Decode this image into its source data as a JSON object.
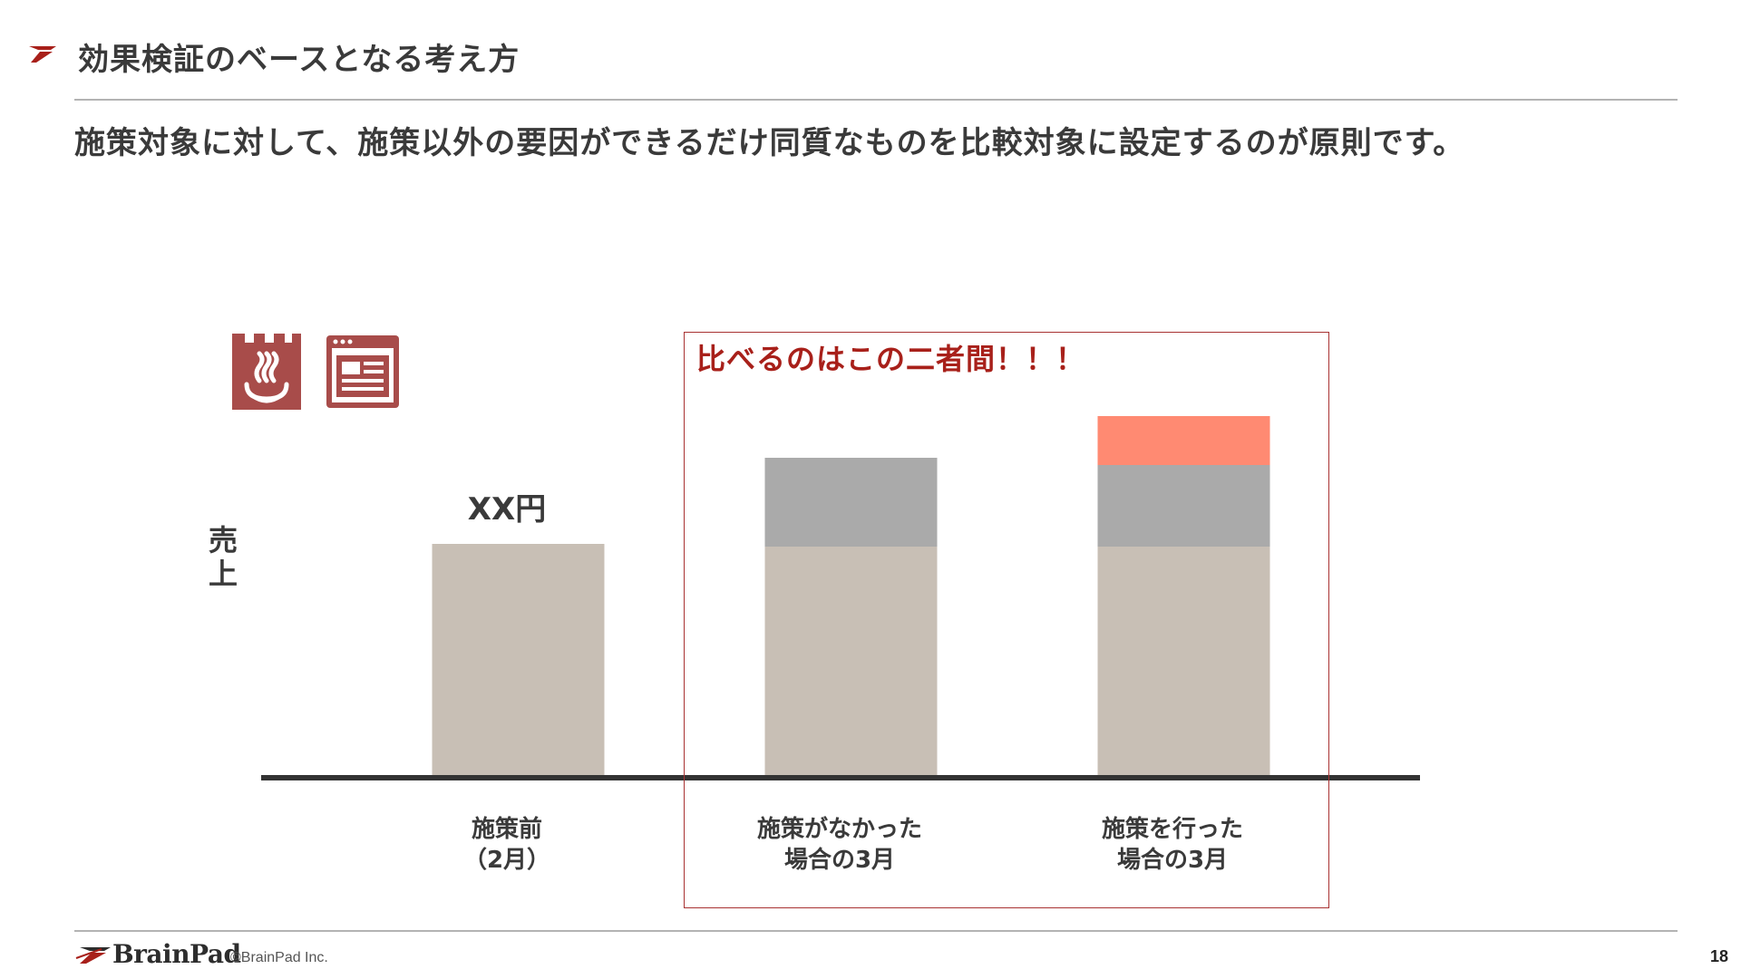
{
  "header": {
    "title": "効果検証のベースとなる考え方",
    "subtitle": "施策対象に対して、施策以外の要因ができるだけ同質なものを比較対象に設定するのが原則です。"
  },
  "icons": {
    "onsen": "hot-spring-icon",
    "web": "web-page-icon"
  },
  "chart_data": {
    "type": "bar",
    "stacked": true,
    "ylabel": "売上",
    "categories": [
      [
        "施策前",
        "（2月）"
      ],
      [
        "施策がなかった",
        "場合の3月"
      ],
      [
        "施策を行った",
        "場合の3月"
      ]
    ],
    "series": [
      {
        "color": "#c8bfb5",
        "values": [
          255,
          252,
          252
        ]
      },
      {
        "color": "#aaaaaa",
        "values": [
          0,
          98,
          90
        ]
      },
      {
        "color": "#ff8a72",
        "values": [
          0,
          0,
          54
        ]
      }
    ],
    "ylim": [
      0,
      400
    ],
    "annotations": {
      "value_label": "XX円",
      "compare_label": "比べるのはこの二者間！！！"
    },
    "axis_color": "#333333",
    "highlight_color": "#a83232"
  },
  "footer": {
    "brand": "BrainPad",
    "copyright": "©BrainPad Inc.",
    "page": "18"
  }
}
